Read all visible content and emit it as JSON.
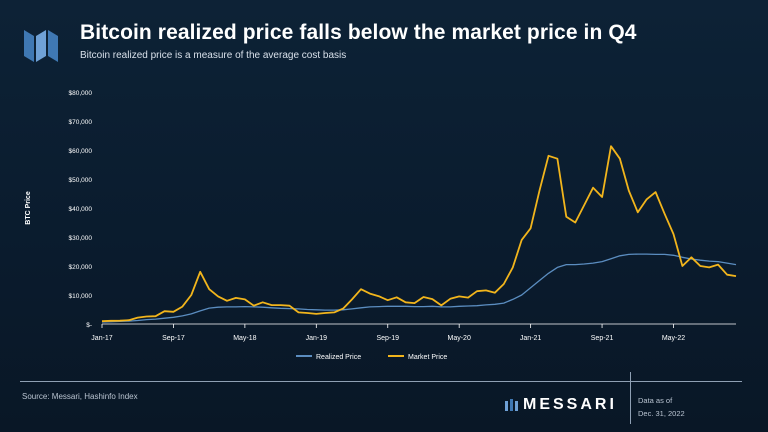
{
  "header": {
    "title": "Bitcoin realized price falls below the market price in Q4",
    "subtitle": "Bitcoin realized price is a measure of the average cost basis"
  },
  "footer": {
    "source": "Source: Messari, Hashinfo Index",
    "brand": "MESSARI",
    "data_as_of_label": "Data as of",
    "data_as_of_date": "Dec. 31, 2022"
  },
  "colors": {
    "realized": "#5b8dc0",
    "market": "#f2b51c",
    "axis": "#ffffff",
    "logo": "#4a7fb8"
  },
  "icons": {
    "logo": "messari-logo-icon"
  },
  "chart_data": {
    "type": "line",
    "ylabel": "BTC Price",
    "xlabel": "",
    "ylim": [
      0,
      80000
    ],
    "yticks": [
      0,
      10000,
      20000,
      30000,
      40000,
      50000,
      60000,
      70000,
      80000
    ],
    "ytick_labels": [
      "$-",
      "$10,000",
      "$20,000",
      "$30,000",
      "$40,000",
      "$50,000",
      "$60,000",
      "$70,000",
      "$80,000"
    ],
    "xlim": [
      "2017-01",
      "2022-12"
    ],
    "xtick_labels": [
      "Jan-17",
      "Sep-17",
      "May-18",
      "Jan-19",
      "Sep-19",
      "May-20",
      "Jan-21",
      "Sep-21",
      "May-22"
    ],
    "xtick_values": [
      "2017-01",
      "2017-09",
      "2018-05",
      "2019-01",
      "2019-09",
      "2020-05",
      "2021-01",
      "2021-09",
      "2022-05"
    ],
    "legend": {
      "placement": "bottom"
    },
    "x": [
      "2017-01",
      "2017-02",
      "2017-03",
      "2017-04",
      "2017-05",
      "2017-06",
      "2017-07",
      "2017-08",
      "2017-09",
      "2017-10",
      "2017-11",
      "2017-12",
      "2018-01",
      "2018-02",
      "2018-03",
      "2018-04",
      "2018-05",
      "2018-06",
      "2018-07",
      "2018-08",
      "2018-09",
      "2018-10",
      "2018-11",
      "2018-12",
      "2019-01",
      "2019-02",
      "2019-03",
      "2019-04",
      "2019-05",
      "2019-06",
      "2019-07",
      "2019-08",
      "2019-09",
      "2019-10",
      "2019-11",
      "2019-12",
      "2020-01",
      "2020-02",
      "2020-03",
      "2020-04",
      "2020-05",
      "2020-06",
      "2020-07",
      "2020-08",
      "2020-09",
      "2020-10",
      "2020-11",
      "2020-12",
      "2021-01",
      "2021-02",
      "2021-03",
      "2021-04",
      "2021-05",
      "2021-06",
      "2021-07",
      "2021-08",
      "2021-09",
      "2021-10",
      "2021-11",
      "2021-12",
      "2022-01",
      "2022-02",
      "2022-03",
      "2022-04",
      "2022-05",
      "2022-06",
      "2022-07",
      "2022-08",
      "2022-09",
      "2022-10",
      "2022-11",
      "2022-12"
    ],
    "series": [
      {
        "name": "Realized Price",
        "values": [
          700,
          800,
          900,
          1000,
          1200,
          1500,
          1700,
          2000,
          2300,
          2800,
          3500,
          4500,
          5500,
          5800,
          5900,
          5900,
          6000,
          5900,
          5800,
          5600,
          5400,
          5300,
          5200,
          5000,
          4900,
          4800,
          4800,
          4900,
          5200,
          5600,
          5900,
          6000,
          6100,
          6100,
          6100,
          6000,
          6000,
          6100,
          5900,
          5900,
          6100,
          6200,
          6300,
          6600,
          6800,
          7200,
          8500,
          10000,
          12500,
          15000,
          17500,
          19500,
          20500,
          20500,
          20700,
          21000,
          21500,
          22500,
          23500,
          24000,
          24100,
          24100,
          24000,
          24000,
          23700,
          23000,
          22400,
          22000,
          21700,
          21500,
          21000,
          20500
        ]
      },
      {
        "name": "Market Price",
        "values": [
          950,
          1100,
          1150,
          1300,
          2200,
          2600,
          2700,
          4400,
          4200,
          6000,
          10000,
          18000,
          12000,
          9500,
          8000,
          9000,
          8500,
          6300,
          7500,
          6500,
          6500,
          6300,
          4000,
          3800,
          3500,
          3800,
          4000,
          5300,
          8500,
          12000,
          10500,
          9600,
          8200,
          9200,
          7500,
          7200,
          9300,
          8600,
          6400,
          8700,
          9500,
          9100,
          11300,
          11600,
          10800,
          13800,
          19500,
          29000,
          33000,
          46000,
          58000,
          57000,
          37000,
          35000,
          41000,
          47000,
          43800,
          61300,
          57000,
          46000,
          38500,
          43000,
          45500,
          38000,
          31000,
          20000,
          23000,
          20000,
          19500,
          20500,
          17000,
          16500
        ]
      }
    ]
  }
}
